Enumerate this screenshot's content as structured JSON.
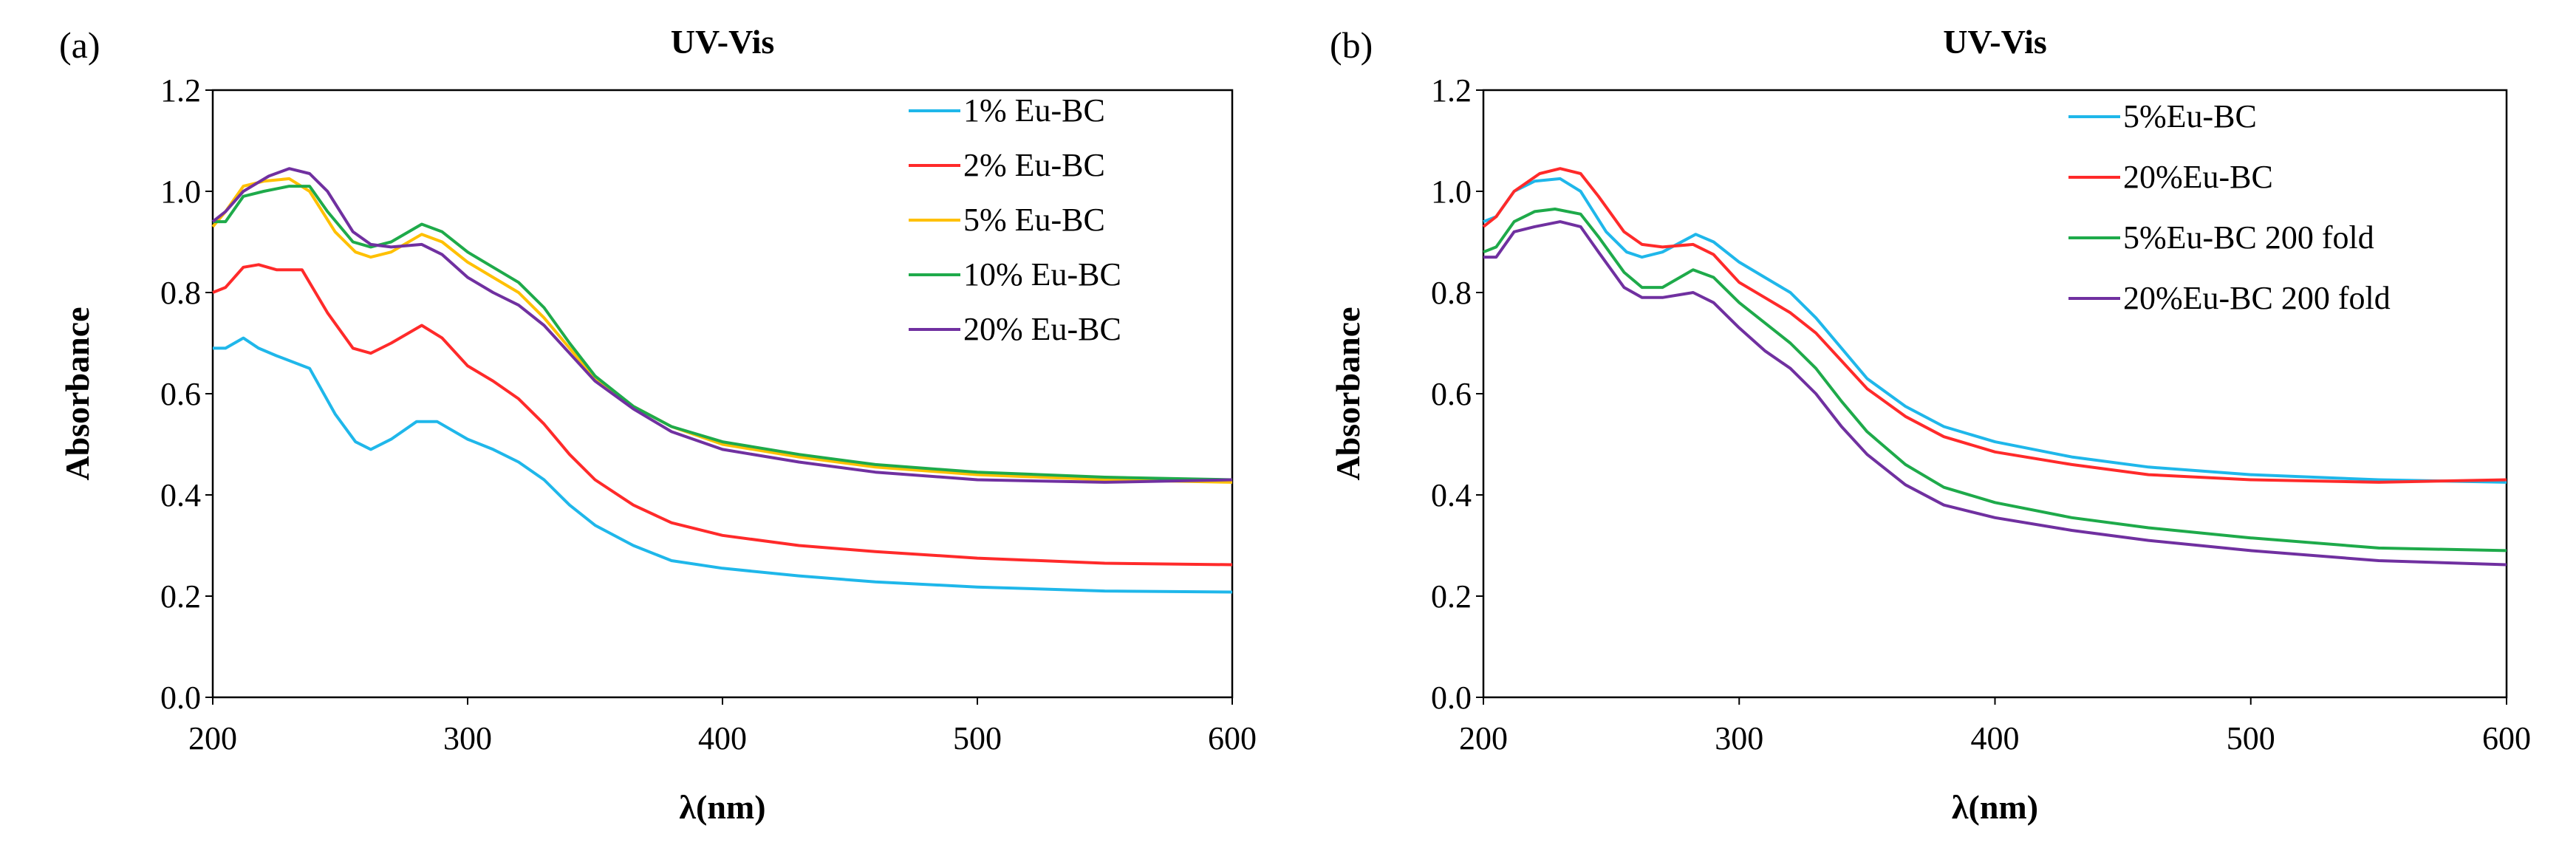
{
  "chart_data": [
    {
      "type": "line",
      "panel_label": "(a)",
      "title": "UV-Vis",
      "xlabel": "λ(nm)",
      "ylabel": "Absorbance",
      "xlim": [
        200,
        600
      ],
      "ylim": [
        0,
        1.2
      ],
      "xticks": [
        "200",
        "300",
        "400",
        "500",
        "600"
      ],
      "yticks": [
        "0.0",
        "0.2",
        "0.4",
        "0.6",
        "0.8",
        "1.0",
        "1.2"
      ],
      "grid": false,
      "legend_position": "top-right",
      "series": [
        {
          "name": "1% Eu-BC",
          "color": "#1FB7EA",
          "points": [
            [
              200,
              0.69
            ],
            [
              205,
              0.69
            ],
            [
              212,
              0.71
            ],
            [
              218,
              0.69
            ],
            [
              225,
              0.675
            ],
            [
              238,
              0.65
            ],
            [
              248,
              0.56
            ],
            [
              256,
              0.505
            ],
            [
              262,
              0.49
            ],
            [
              270,
              0.51
            ],
            [
              280,
              0.545
            ],
            [
              288,
              0.545
            ],
            [
              300,
              0.51
            ],
            [
              310,
              0.49
            ],
            [
              320,
              0.465
            ],
            [
              330,
              0.43
            ],
            [
              340,
              0.38
            ],
            [
              350,
              0.34
            ],
            [
              365,
              0.3
            ],
            [
              380,
              0.27
            ],
            [
              400,
              0.255
            ],
            [
              430,
              0.24
            ],
            [
              460,
              0.228
            ],
            [
              500,
              0.218
            ],
            [
              550,
              0.21
            ],
            [
              600,
              0.208
            ]
          ]
        },
        {
          "name": "2% Eu-BC",
          "color": "#FF2A2A",
          "points": [
            [
              200,
              0.8
            ],
            [
              205,
              0.81
            ],
            [
              212,
              0.85
            ],
            [
              218,
              0.855
            ],
            [
              225,
              0.845
            ],
            [
              235,
              0.845
            ],
            [
              245,
              0.76
            ],
            [
              255,
              0.69
            ],
            [
              262,
              0.68
            ],
            [
              270,
              0.7
            ],
            [
              282,
              0.735
            ],
            [
              290,
              0.71
            ],
            [
              300,
              0.655
            ],
            [
              310,
              0.625
            ],
            [
              320,
              0.59
            ],
            [
              330,
              0.54
            ],
            [
              340,
              0.48
            ],
            [
              350,
              0.43
            ],
            [
              365,
              0.38
            ],
            [
              380,
              0.345
            ],
            [
              400,
              0.32
            ],
            [
              430,
              0.3
            ],
            [
              460,
              0.288
            ],
            [
              500,
              0.275
            ],
            [
              550,
              0.265
            ],
            [
              600,
              0.262
            ]
          ]
        },
        {
          "name": "5% Eu-BC",
          "color": "#FFC000",
          "points": [
            [
              200,
              0.93
            ],
            [
              205,
              0.96
            ],
            [
              212,
              1.01
            ],
            [
              220,
              1.02
            ],
            [
              230,
              1.025
            ],
            [
              238,
              1.0
            ],
            [
              248,
              0.92
            ],
            [
              256,
              0.88
            ],
            [
              262,
              0.87
            ],
            [
              270,
              0.88
            ],
            [
              282,
              0.915
            ],
            [
              290,
              0.9
            ],
            [
              300,
              0.86
            ],
            [
              310,
              0.83
            ],
            [
              320,
              0.8
            ],
            [
              330,
              0.75
            ],
            [
              340,
              0.69
            ],
            [
              350,
              0.63
            ],
            [
              365,
              0.575
            ],
            [
              380,
              0.535
            ],
            [
              400,
              0.5
            ],
            [
              430,
              0.475
            ],
            [
              460,
              0.455
            ],
            [
              500,
              0.44
            ],
            [
              550,
              0.43
            ],
            [
              600,
              0.425
            ]
          ]
        },
        {
          "name": "10% Eu-BC",
          "color": "#1EAA4A",
          "points": [
            [
              200,
              0.94
            ],
            [
              205,
              0.94
            ],
            [
              212,
              0.99
            ],
            [
              220,
              1.0
            ],
            [
              230,
              1.01
            ],
            [
              238,
              1.01
            ],
            [
              245,
              0.96
            ],
            [
              255,
              0.9
            ],
            [
              262,
              0.89
            ],
            [
              270,
              0.9
            ],
            [
              282,
              0.935
            ],
            [
              290,
              0.92
            ],
            [
              300,
              0.88
            ],
            [
              310,
              0.85
            ],
            [
              320,
              0.82
            ],
            [
              330,
              0.77
            ],
            [
              340,
              0.7
            ],
            [
              350,
              0.635
            ],
            [
              365,
              0.575
            ],
            [
              380,
              0.535
            ],
            [
              400,
              0.505
            ],
            [
              430,
              0.48
            ],
            [
              460,
              0.46
            ],
            [
              500,
              0.445
            ],
            [
              550,
              0.435
            ],
            [
              600,
              0.43
            ]
          ]
        },
        {
          "name": "20% Eu-BC",
          "color": "#7030A0",
          "points": [
            [
              200,
              0.94
            ],
            [
              205,
              0.96
            ],
            [
              212,
              1.0
            ],
            [
              222,
              1.03
            ],
            [
              230,
              1.045
            ],
            [
              238,
              1.035
            ],
            [
              245,
              1.0
            ],
            [
              255,
              0.92
            ],
            [
              262,
              0.895
            ],
            [
              270,
              0.89
            ],
            [
              282,
              0.895
            ],
            [
              290,
              0.875
            ],
            [
              300,
              0.83
            ],
            [
              310,
              0.8
            ],
            [
              320,
              0.775
            ],
            [
              330,
              0.735
            ],
            [
              340,
              0.68
            ],
            [
              350,
              0.625
            ],
            [
              365,
              0.57
            ],
            [
              380,
              0.525
            ],
            [
              400,
              0.49
            ],
            [
              430,
              0.465
            ],
            [
              460,
              0.445
            ],
            [
              500,
              0.43
            ],
            [
              550,
              0.425
            ],
            [
              600,
              0.43
            ]
          ]
        }
      ]
    },
    {
      "type": "line",
      "panel_label": "(b)",
      "title": "UV-Vis",
      "xlabel": "λ(nm)",
      "ylabel": "Absorbance",
      "xlim": [
        200,
        600
      ],
      "ylim": [
        0,
        1.2
      ],
      "xticks": [
        "200",
        "300",
        "400",
        "500",
        "600"
      ],
      "yticks": [
        "0.0",
        "0.2",
        "0.4",
        "0.6",
        "0.8",
        "1.0",
        "1.2"
      ],
      "grid": false,
      "legend_position": "top-right",
      "series": [
        {
          "name": "5%Eu-BC",
          "color": "#1FB7EA",
          "points": [
            [
              200,
              0.94
            ],
            [
              205,
              0.95
            ],
            [
              212,
              1.0
            ],
            [
              220,
              1.02
            ],
            [
              230,
              1.025
            ],
            [
              238,
              1.0
            ],
            [
              248,
              0.92
            ],
            [
              256,
              0.88
            ],
            [
              262,
              0.87
            ],
            [
              270,
              0.88
            ],
            [
              283,
              0.915
            ],
            [
              290,
              0.9
            ],
            [
              300,
              0.86
            ],
            [
              310,
              0.83
            ],
            [
              320,
              0.8
            ],
            [
              330,
              0.75
            ],
            [
              340,
              0.69
            ],
            [
              350,
              0.63
            ],
            [
              365,
              0.575
            ],
            [
              380,
              0.535
            ],
            [
              400,
              0.505
            ],
            [
              430,
              0.475
            ],
            [
              460,
              0.455
            ],
            [
              500,
              0.44
            ],
            [
              550,
              0.43
            ],
            [
              600,
              0.425
            ]
          ]
        },
        {
          "name": "20%Eu-BC",
          "color": "#FF2A2A",
          "points": [
            [
              200,
              0.93
            ],
            [
              205,
              0.95
            ],
            [
              212,
              1.0
            ],
            [
              222,
              1.035
            ],
            [
              230,
              1.045
            ],
            [
              238,
              1.035
            ],
            [
              245,
              0.99
            ],
            [
              255,
              0.92
            ],
            [
              262,
              0.895
            ],
            [
              270,
              0.89
            ],
            [
              282,
              0.895
            ],
            [
              290,
              0.875
            ],
            [
              300,
              0.82
            ],
            [
              310,
              0.79
            ],
            [
              320,
              0.76
            ],
            [
              330,
              0.72
            ],
            [
              340,
              0.665
            ],
            [
              350,
              0.61
            ],
            [
              365,
              0.555
            ],
            [
              380,
              0.515
            ],
            [
              400,
              0.485
            ],
            [
              430,
              0.46
            ],
            [
              460,
              0.44
            ],
            [
              500,
              0.43
            ],
            [
              550,
              0.425
            ],
            [
              600,
              0.43
            ]
          ]
        },
        {
          "name": "5%Eu-BC 200 fold",
          "color": "#1EAA4A",
          "points": [
            [
              200,
              0.88
            ],
            [
              205,
              0.89
            ],
            [
              212,
              0.94
            ],
            [
              220,
              0.96
            ],
            [
              228,
              0.965
            ],
            [
              238,
              0.955
            ],
            [
              245,
              0.91
            ],
            [
              255,
              0.84
            ],
            [
              262,
              0.81
            ],
            [
              270,
              0.81
            ],
            [
              282,
              0.845
            ],
            [
              290,
              0.83
            ],
            [
              300,
              0.78
            ],
            [
              310,
              0.74
            ],
            [
              320,
              0.7
            ],
            [
              330,
              0.65
            ],
            [
              340,
              0.585
            ],
            [
              350,
              0.525
            ],
            [
              365,
              0.46
            ],
            [
              380,
              0.415
            ],
            [
              400,
              0.385
            ],
            [
              430,
              0.355
            ],
            [
              460,
              0.335
            ],
            [
              500,
              0.315
            ],
            [
              550,
              0.295
            ],
            [
              600,
              0.29
            ]
          ]
        },
        {
          "name": "20%Eu-BC 200 fold",
          "color": "#7030A0",
          "points": [
            [
              200,
              0.87
            ],
            [
              205,
              0.87
            ],
            [
              212,
              0.92
            ],
            [
              220,
              0.93
            ],
            [
              230,
              0.94
            ],
            [
              238,
              0.93
            ],
            [
              245,
              0.88
            ],
            [
              255,
              0.81
            ],
            [
              262,
              0.79
            ],
            [
              270,
              0.79
            ],
            [
              282,
              0.8
            ],
            [
              290,
              0.78
            ],
            [
              300,
              0.73
            ],
            [
              310,
              0.685
            ],
            [
              320,
              0.65
            ],
            [
              330,
              0.6
            ],
            [
              340,
              0.535
            ],
            [
              350,
              0.48
            ],
            [
              365,
              0.42
            ],
            [
              380,
              0.38
            ],
            [
              400,
              0.355
            ],
            [
              430,
              0.33
            ],
            [
              460,
              0.31
            ],
            [
              500,
              0.29
            ],
            [
              550,
              0.27
            ],
            [
              600,
              0.262
            ]
          ]
        }
      ]
    }
  ]
}
